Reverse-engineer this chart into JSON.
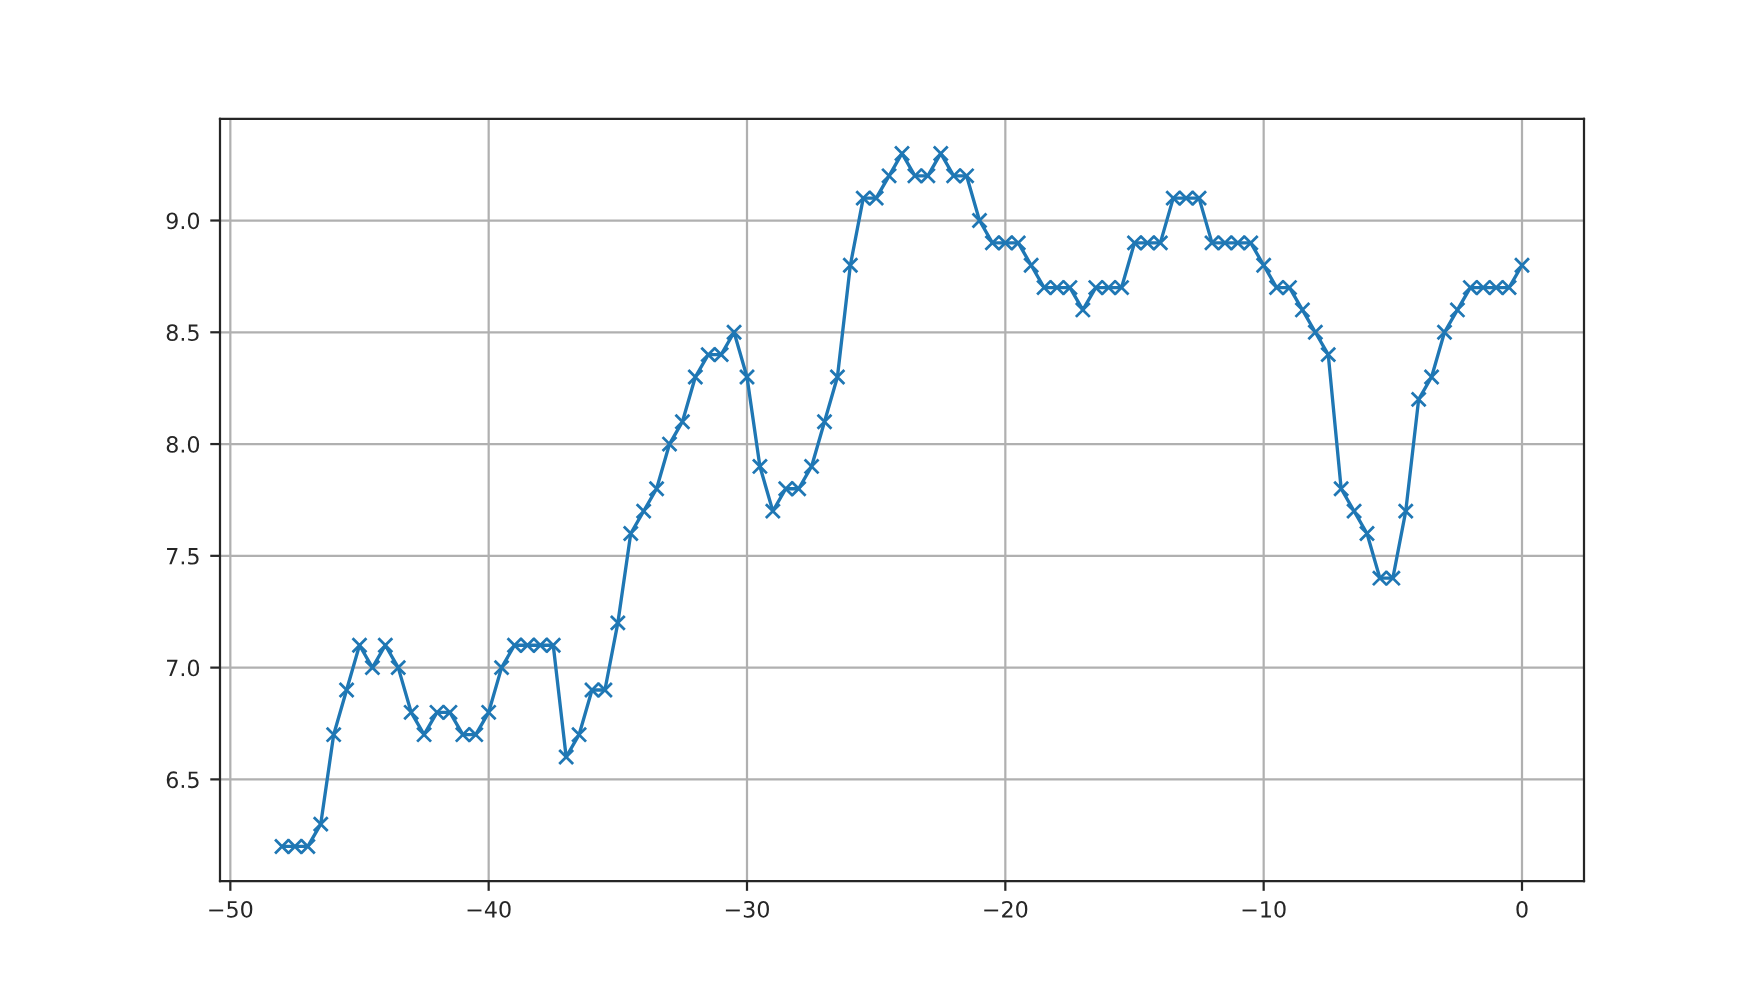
{
  "chart_data": {
    "type": "line",
    "x": [
      -48,
      -47.5,
      -47,
      -46.5,
      -46,
      -45.5,
      -45,
      -44.5,
      -44,
      -43.5,
      -43,
      -42.5,
      -42,
      -41.5,
      -41,
      -40.5,
      -40,
      -39.5,
      -39,
      -38.5,
      -38,
      -37.5,
      -37,
      -36.5,
      -36,
      -35.5,
      -35,
      -34.5,
      -34,
      -33.5,
      -33,
      -32.5,
      -32,
      -31.5,
      -31,
      -30.5,
      -30,
      -29.5,
      -29,
      -28.5,
      -28,
      -27.5,
      -27,
      -26.5,
      -26,
      -25.5,
      -25,
      -24.5,
      -24,
      -23.5,
      -23,
      -22.5,
      -22,
      -21.5,
      -21,
      -20.5,
      -20,
      -19.5,
      -19,
      -18.5,
      -18,
      -17.5,
      -17,
      -16.5,
      -16,
      -15.5,
      -15,
      -14.5,
      -14,
      -13.5,
      -13,
      -12.5,
      -12,
      -11.5,
      -11,
      -10.5,
      -10,
      -9.5,
      -9,
      -8.5,
      -8,
      -7.5,
      -7,
      -6.5,
      -6,
      -5.5,
      -5,
      -4.5,
      -4,
      -3.5,
      -3,
      -2.5,
      -2,
      -1.5,
      -1,
      -0.5,
      0
    ],
    "series": [
      {
        "color": "#1f77b4",
        "values": [
          6.2,
          6.2,
          6.2,
          6.3,
          6.7,
          6.9,
          7.1,
          7.0,
          7.1,
          7.0,
          6.8,
          6.7,
          6.8,
          6.8,
          6.7,
          6.7,
          6.8,
          7.0,
          7.1,
          7.1,
          7.1,
          7.1,
          6.6,
          6.7,
          6.9,
          6.9,
          7.2,
          7.6,
          7.7,
          7.8,
          8.0,
          8.1,
          8.3,
          8.4,
          8.4,
          8.5,
          8.3,
          7.9,
          7.7,
          7.8,
          7.8,
          7.9,
          8.1,
          8.3,
          8.8,
          9.1,
          9.1,
          9.2,
          9.3,
          9.2,
          9.2,
          9.3,
          9.2,
          9.2,
          9.0,
          8.9,
          8.9,
          8.9,
          8.8,
          8.7,
          8.7,
          8.7,
          8.6,
          8.7,
          8.7,
          8.7,
          8.9,
          8.9,
          8.9,
          9.1,
          9.1,
          9.1,
          8.9,
          8.9,
          8.9,
          8.9,
          8.8,
          8.7,
          8.7,
          8.6,
          8.5,
          8.4,
          7.8,
          7.7,
          7.6,
          7.4,
          7.4,
          7.7,
          8.2,
          8.3,
          8.5,
          8.6,
          8.7,
          8.7,
          8.7,
          8.7,
          8.8
        ]
      }
    ],
    "xlim": [
      -50.4,
      2.4
    ],
    "ylim": [
      6.045,
      9.455
    ],
    "xticks": [
      {
        "value": -50,
        "label": "−50"
      },
      {
        "value": -40,
        "label": "−40"
      },
      {
        "value": -30,
        "label": "−30"
      },
      {
        "value": -20,
        "label": "−20"
      },
      {
        "value": -10,
        "label": "−10"
      },
      0
    ],
    "yticks": [
      6.5,
      {
        "value": 7,
        "label": "7.0"
      },
      7.5,
      {
        "value": 8,
        "label": "8.0"
      },
      8.5,
      {
        "value": 9,
        "label": "9.0"
      }
    ],
    "grid": true,
    "marker": "cross",
    "line_style": "solid"
  }
}
